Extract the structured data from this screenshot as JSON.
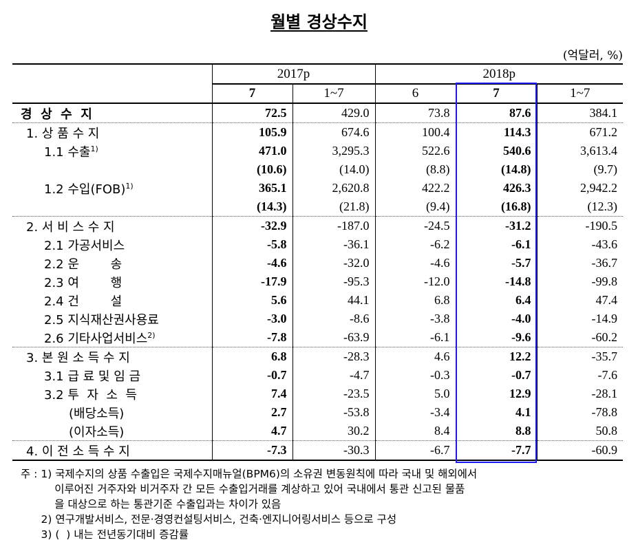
{
  "title": "월별 경상수지",
  "unit": "(억달러, %)",
  "header": {
    "years": [
      "2017p",
      "2018p"
    ],
    "months": [
      "7",
      "1~7",
      "6",
      "7",
      "1~7"
    ]
  },
  "highlight_color": "#1a1af0",
  "rows": [
    {
      "label": "경  상  수  지",
      "sup": "",
      "indent": 12,
      "bold_label": true,
      "values": [
        "72.5",
        "429.0",
        "73.8",
        "87.6",
        "384.1"
      ]
    },
    {
      "label": "1. 상 품 수 지",
      "sup": "",
      "indent": 20,
      "values": [
        "105.9",
        "674.6",
        "100.4",
        "114.3",
        "671.2"
      ]
    },
    {
      "label": "1.1 수출",
      "sup": "1)",
      "indent": 46,
      "values": [
        "471.0",
        "3,295.3",
        "522.6",
        "540.6",
        "3,613.4"
      ]
    },
    {
      "label": "",
      "sup": "",
      "indent": 46,
      "values": [
        "(10.6)",
        "(14.0)",
        "(8.8)",
        "(14.8)",
        "(9.7)"
      ]
    },
    {
      "label": "1.2 수입(FOB)",
      "sup": "1)",
      "indent": 46,
      "values": [
        "365.1",
        "2,620.8",
        "422.2",
        "426.3",
        "2,942.2"
      ]
    },
    {
      "label": "",
      "sup": "",
      "indent": 46,
      "values": [
        "(14.3)",
        "(21.8)",
        "(9.4)",
        "(16.8)",
        "(12.3)"
      ]
    },
    {
      "label": "2. 서 비 스 수 지",
      "sup": "",
      "indent": 20,
      "sep": true,
      "values": [
        "-32.9",
        "-187.0",
        "-24.5",
        "-31.2",
        "-190.5"
      ]
    },
    {
      "label": "2.1 가공서비스",
      "sup": "",
      "indent": 46,
      "values": [
        "-5.8",
        "-36.1",
        "-6.2",
        "-6.1",
        "-43.6"
      ]
    },
    {
      "label": "2.2 운        송",
      "sup": "",
      "indent": 46,
      "values": [
        "-4.6",
        "-32.0",
        "-4.6",
        "-5.7",
        "-36.7"
      ]
    },
    {
      "label": "2.3 여        행",
      "sup": "",
      "indent": 46,
      "values": [
        "-17.9",
        "-95.3",
        "-12.0",
        "-14.8",
        "-99.8"
      ]
    },
    {
      "label": "2.4 건        설",
      "sup": "",
      "indent": 46,
      "values": [
        "5.6",
        "44.1",
        "6.8",
        "6.4",
        "47.4"
      ]
    },
    {
      "label": "2.5 지식재산권사용료",
      "sup": "",
      "indent": 46,
      "values": [
        "-3.0",
        "-8.6",
        "-3.8",
        "-4.0",
        "-14.9"
      ]
    },
    {
      "label": "2.6 기타사업서비스",
      "sup": "2)",
      "indent": 46,
      "values": [
        "-7.8",
        "-63.9",
        "-6.1",
        "-9.6",
        "-60.2"
      ]
    },
    {
      "label": "3. 본 원 소 득 수 지",
      "sup": "",
      "indent": 20,
      "sep": true,
      "values": [
        "6.8",
        "-28.3",
        "4.6",
        "12.2",
        "-35.7"
      ]
    },
    {
      "label": "3.1 급 료 및 임 금",
      "sup": "",
      "indent": 46,
      "values": [
        "-0.7",
        "-4.7",
        "-0.3",
        "-0.7",
        "-7.6"
      ]
    },
    {
      "label": "3.2 투  자  소  득",
      "sup": "",
      "indent": 46,
      "values": [
        "7.4",
        "-23.5",
        "5.0",
        "12.9",
        "-28.1"
      ]
    },
    {
      "label": "(배당소득)",
      "sup": "",
      "indent": 82,
      "values": [
        "2.7",
        "-53.8",
        "-3.4",
        "4.1",
        "-78.8"
      ]
    },
    {
      "label": "(이자소득)",
      "sup": "",
      "indent": 82,
      "values": [
        "4.7",
        "30.2",
        "8.4",
        "8.8",
        "50.8"
      ]
    },
    {
      "label": "4. 이 전 소 득 수 지",
      "sup": "",
      "indent": 20,
      "sep": true,
      "last": true,
      "values": [
        "-7.3",
        "-30.3",
        "-6.7",
        "-7.7",
        "-60.9"
      ]
    }
  ],
  "notes": [
    "주 : 1) 국제수지의 상품 수출입은 국제수지매뉴얼(BPM6)의 소유권 변동원칙에 따라 국내 및 해외에서",
    "          이루어진 거주자와 비거주자 간 모든 수출입거래를 계상하고 있어 국내에서 통관 신고된 물품",
    "          을 대상으로 하는 통관기준 수출입과는 차이가 있음",
    "      2) 연구개발서비스, 전문·경영컨설팅서비스, 건축·엔지니어링서비스 등으로 구성",
    "      3) (  ) 내는 전년동기대비 증감률"
  ]
}
